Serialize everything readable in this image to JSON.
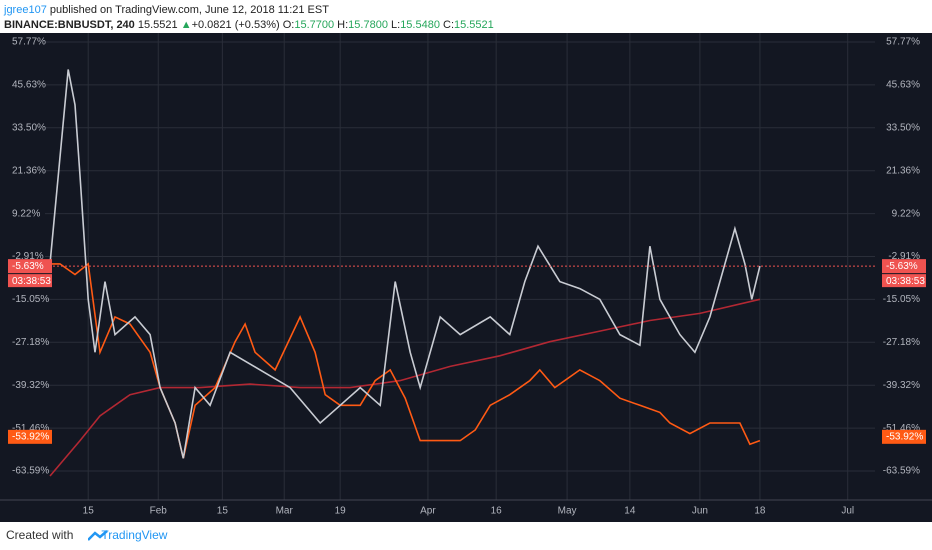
{
  "header": {
    "author": "jgree107",
    "published": "published on TradingView.com, June 12, 2018 11:21 EST",
    "symbol": "BINANCE:BNBUSDT, 240",
    "last": "15.5521",
    "arrow": "▲",
    "change": "+0.0821 (+0.53%)",
    "o_label": "O:",
    "o": "15.7700",
    "h_label": "H:",
    "h": "15.7800",
    "l_label": "L:",
    "l": "15.5480",
    "c_label": "C:",
    "c": "15.5521"
  },
  "chart_data": {
    "type": "line",
    "xlim": [
      4.5,
      187
    ],
    "xticks": [
      {
        "value": 14,
        "label": "15"
      },
      {
        "value": 29.4,
        "label": "Feb"
      },
      {
        "value": 43.5,
        "label": "15"
      },
      {
        "value": 57.1,
        "label": "Mar"
      },
      {
        "value": 69.4,
        "label": "19"
      },
      {
        "value": 88.7,
        "label": "Apr"
      },
      {
        "value": 103.7,
        "label": "16"
      },
      {
        "value": 119.3,
        "label": "May"
      },
      {
        "value": 133.1,
        "label": "14"
      },
      {
        "value": 148.5,
        "label": "Jun"
      },
      {
        "value": 161.7,
        "label": "18"
      },
      {
        "value": 181,
        "label": "Jul"
      }
    ],
    "ylim": [
      -71.79,
      60.32
    ],
    "yticks": [
      {
        "value": 57.77,
        "label": "57.77%"
      },
      {
        "value": 45.63,
        "label": "45.63%"
      },
      {
        "value": 33.5,
        "label": "33.50%"
      },
      {
        "value": 21.36,
        "label": "21.36%"
      },
      {
        "value": 9.22,
        "label": "9.22%"
      },
      {
        "value": -2.91,
        "label": "-2.91%"
      },
      {
        "value": -15.05,
        "label": "-15.05%"
      },
      {
        "value": -27.18,
        "label": "-27.18%"
      },
      {
        "value": -39.32,
        "label": "-39.32%"
      },
      {
        "value": -51.46,
        "label": "-51.46%"
      },
      {
        "value": -63.59,
        "label": "-63.59%"
      }
    ],
    "grid": true,
    "series": [
      {
        "color": "#b22833",
        "x": [
          5.6,
          12.2,
          16.6,
          23.2,
          29.8,
          38.6,
          49.6,
          60.6,
          71.6,
          82.6,
          93.6,
          104.5,
          115.5,
          126.5,
          137.5,
          148.5,
          161.7
        ],
        "values": [
          -65,
          -55,
          -48,
          -42,
          -40,
          -40,
          -39,
          -40,
          -40,
          -38,
          -34,
          -31,
          -27,
          -24,
          -21,
          -19,
          -15
        ]
      },
      {
        "color": "#ff5a14",
        "x": [
          5.6,
          7.8,
          11.1,
          14,
          16.6,
          19.9,
          23.2,
          27.6,
          29.8,
          33.1,
          34.9,
          37.5,
          41.9,
          46.3,
          48.5,
          50.7,
          55.1,
          60.6,
          63.9,
          66.1,
          69.4,
          73.8,
          77.1,
          80.4,
          83.7,
          87,
          91.4,
          95.8,
          99.1,
          102.4,
          106.7,
          111.1,
          113.3,
          116.6,
          122.1,
          126.5,
          130.9,
          135.3,
          139.7,
          141.9,
          146.3,
          150.7,
          157.3,
          159.5,
          161.7
        ],
        "values": [
          -5,
          -5,
          -8,
          -5,
          -30,
          -20,
          -22,
          -30,
          -40,
          -50,
          -60,
          -45,
          -40,
          -27,
          -22,
          -30,
          -35,
          -20,
          -30,
          -42,
          -45,
          -45,
          -38,
          -35,
          -43,
          -55,
          -55,
          -55,
          -52,
          -45,
          -42,
          -38,
          -35,
          -40,
          -35,
          -38,
          -43,
          -45,
          -47,
          -50,
          -53,
          -50,
          -50,
          -56,
          -55
        ]
      },
      {
        "color": "#c9ccd3",
        "x": [
          5.6,
          9.6,
          11.1,
          12.2,
          14,
          15.5,
          17.7,
          19.9,
          24.3,
          27.6,
          29.8,
          33.1,
          34.9,
          37.5,
          40.8,
          45.2,
          51.8,
          58.4,
          65,
          69.4,
          73.8,
          78.2,
          81.5,
          84.8,
          87,
          91.4,
          95.8,
          102.4,
          106.7,
          110,
          112.9,
          117.7,
          122.1,
          126.5,
          130.9,
          135.3,
          137.5,
          139.7,
          144.1,
          147.4,
          150.7,
          152.9,
          156.2,
          158.4,
          159.9,
          161.7
        ],
        "values": [
          -5,
          50,
          40,
          20,
          -15,
          -30,
          -10,
          -25,
          -20,
          -25,
          -40,
          -50,
          -60,
          -40,
          -45,
          -30,
          -35,
          -40,
          -50,
          -45,
          -40,
          -45,
          -10,
          -30,
          -40,
          -20,
          -25,
          -20,
          -25,
          -10,
          0,
          -10,
          -12,
          -15,
          -25,
          -28,
          0,
          -15,
          -25,
          -30,
          -20,
          -10,
          5,
          -5,
          -15,
          -5.63
        ]
      }
    ],
    "markers": [
      {
        "value": -5.63,
        "label": "-5.63%",
        "color": "#ef5350"
      },
      {
        "value": -53.92,
        "label": "-53.92%",
        "color": "#ff5a14"
      }
    ],
    "countdown": "03:38:53"
  },
  "footer": {
    "created": "Created with",
    "brand": "TradingView"
  }
}
